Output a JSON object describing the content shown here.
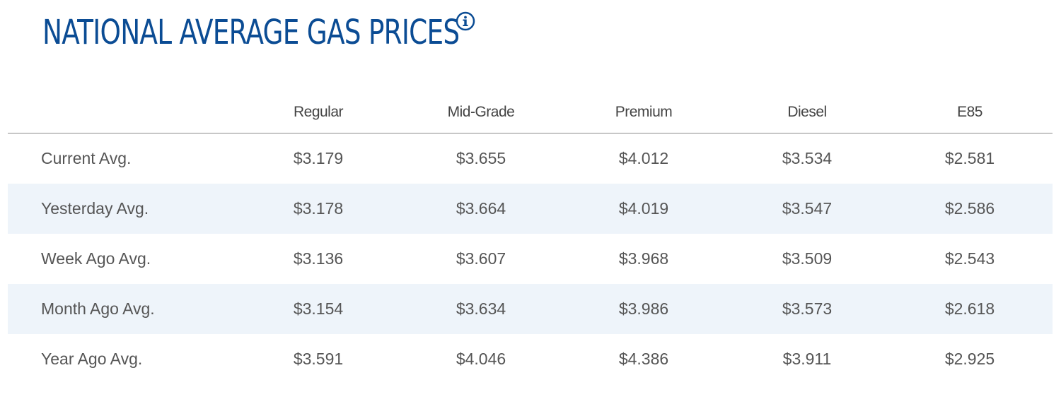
{
  "title": "NATIONAL AVERAGE GAS PRICES",
  "info_icon": "info-icon",
  "colors": {
    "title": "#0b4c94",
    "row_shade": "#eef4fa",
    "text": "#555555"
  },
  "table": {
    "columns": [
      "Regular",
      "Mid-Grade",
      "Premium",
      "Diesel",
      "E85"
    ],
    "rows": [
      {
        "label": "Current Avg.",
        "values": [
          "$3.179",
          "$3.655",
          "$4.012",
          "$3.534",
          "$2.581"
        ]
      },
      {
        "label": "Yesterday Avg.",
        "values": [
          "$3.178",
          "$3.664",
          "$4.019",
          "$3.547",
          "$2.586"
        ]
      },
      {
        "label": "Week Ago Avg.",
        "values": [
          "$3.136",
          "$3.607",
          "$3.968",
          "$3.509",
          "$2.543"
        ]
      },
      {
        "label": "Month Ago Avg.",
        "values": [
          "$3.154",
          "$3.634",
          "$3.986",
          "$3.573",
          "$2.618"
        ]
      },
      {
        "label": "Year Ago Avg.",
        "values": [
          "$3.591",
          "$4.046",
          "$4.386",
          "$3.911",
          "$2.925"
        ]
      }
    ]
  }
}
